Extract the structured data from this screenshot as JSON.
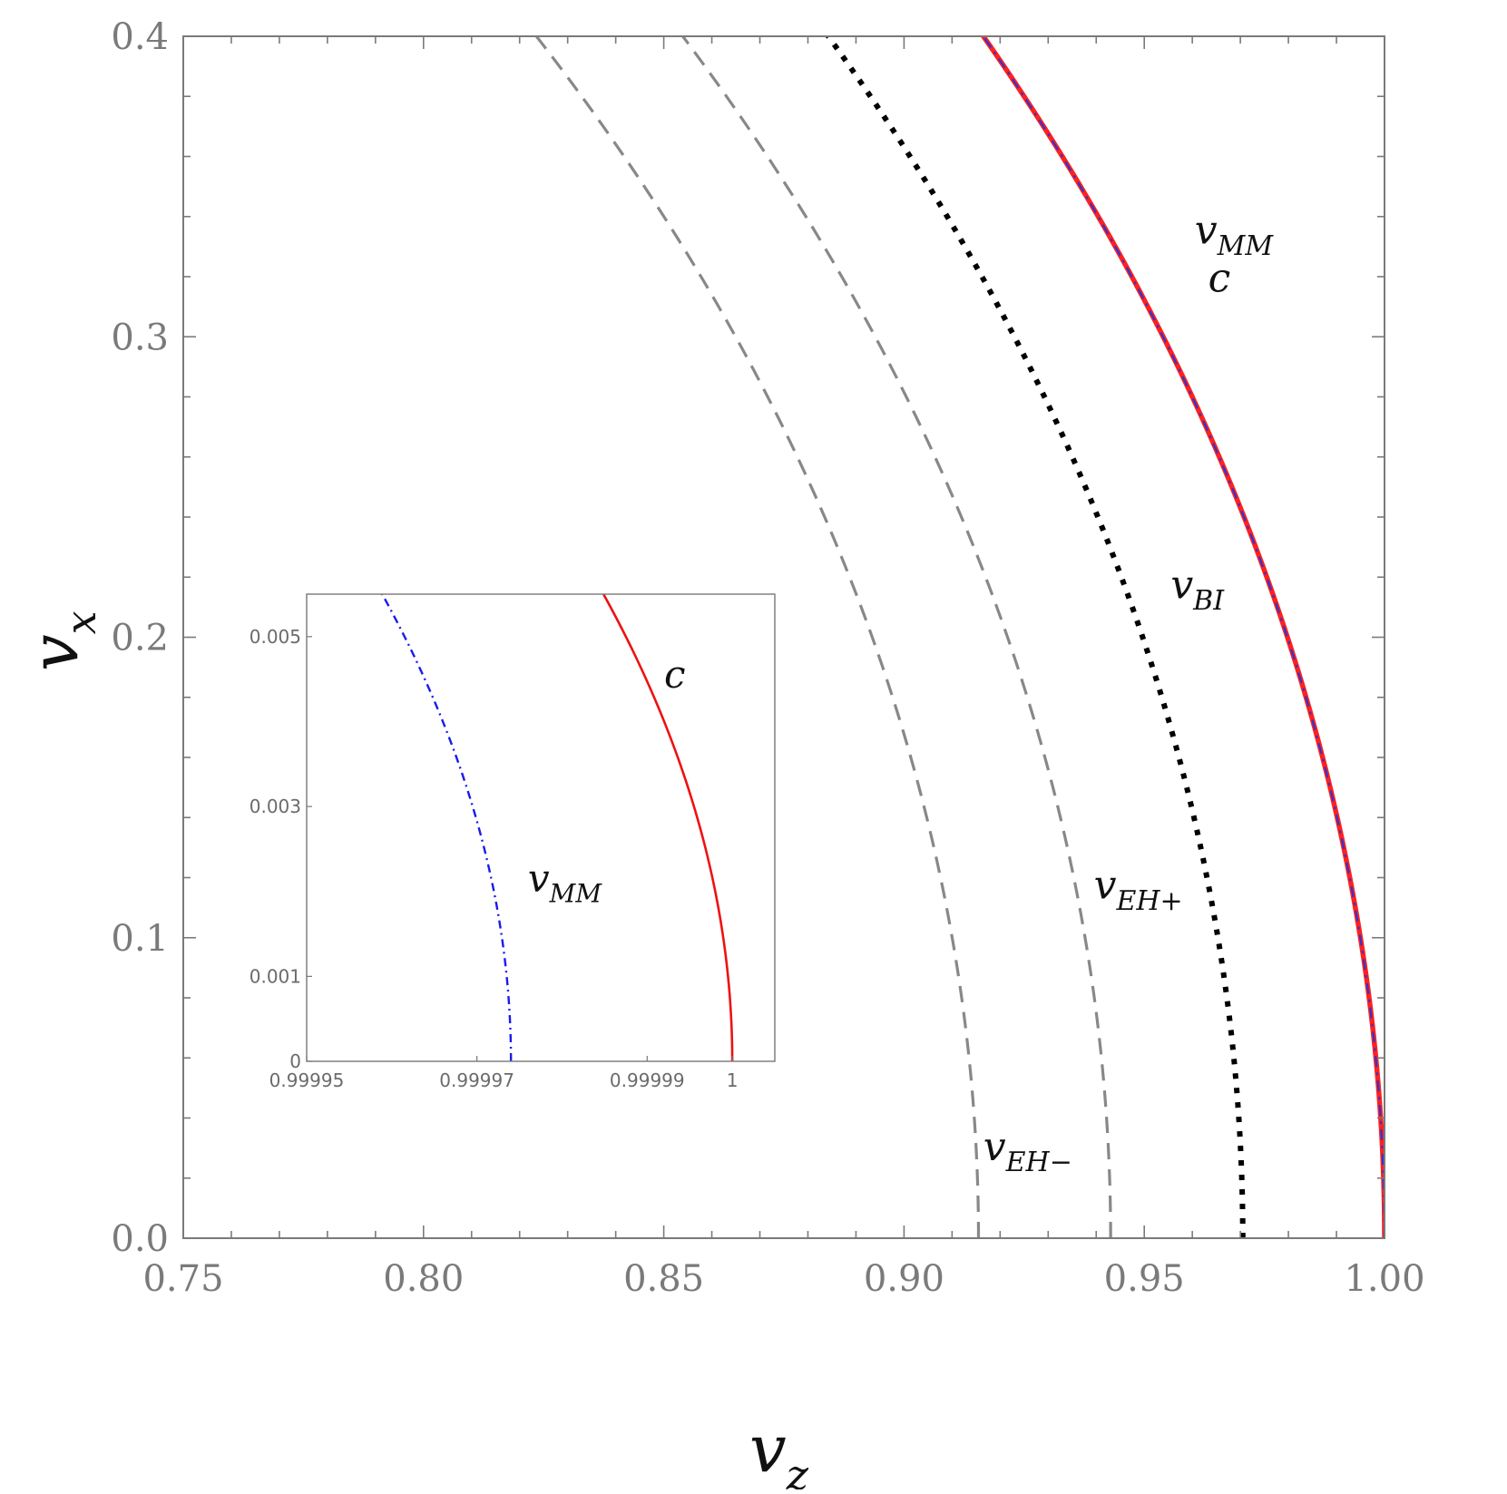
{
  "chart_data": [
    {
      "type": "line",
      "title": "",
      "xlabel": "v",
      "xlabel_sub": "z",
      "ylabel": "v",
      "ylabel_sub": "x",
      "xlim": [
        0.75,
        1.0
      ],
      "ylim": [
        0.0,
        0.4
      ],
      "xticks": [
        0.75,
        0.8,
        0.85,
        0.9,
        0.95,
        1.0
      ],
      "xtick_labels": [
        "0.75",
        "0.80",
        "0.85",
        "0.90",
        "0.95",
        "1.00"
      ],
      "yticks": [
        0.0,
        0.1,
        0.2,
        0.3,
        0.4
      ],
      "ytick_labels": [
        "0.0",
        "0.1",
        "0.2",
        "0.3",
        "0.4"
      ],
      "grid": false,
      "series": [
        {
          "name": "v_{EH-}",
          "radius": 0.9155,
          "style": "dashed",
          "color": "#888888"
        },
        {
          "name": "v_{EH+}",
          "radius": 0.943,
          "style": "dashed",
          "color": "#888888"
        },
        {
          "name": "v_{BI}",
          "radius": 0.9705,
          "style": "dotted",
          "color": "#000000"
        },
        {
          "name": "c",
          "radius": 1.0,
          "style": "solid",
          "color": "#ff2020"
        },
        {
          "name": "v_{MM}",
          "radius": 0.99997,
          "style": "dashdot",
          "color": "#3333cc"
        }
      ],
      "annotations": [
        {
          "base": "v",
          "sub": "MM",
          "x": 0.9605,
          "y": 0.331
        },
        {
          "base": "c",
          "sub": "",
          "x": 0.9633,
          "y": 0.315
        },
        {
          "base": "v",
          "sub": "BI",
          "x": 0.9555,
          "y": 0.213
        },
        {
          "base": "v",
          "sub": "EH+",
          "x": 0.9395,
          "y": 0.113
        },
        {
          "base": "v",
          "sub": "EH−",
          "x": 0.9165,
          "y": 0.026
        }
      ]
    },
    {
      "type": "line",
      "title": "",
      "inset": true,
      "xlim": [
        0.99995,
        1.000005
      ],
      "ylim": [
        0.0,
        0.0055
      ],
      "xticks": [
        0.99995,
        0.99997,
        0.99999,
        1.0
      ],
      "xtick_labels": [
        "0.99995",
        "0.99997",
        "0.99999",
        "1"
      ],
      "yticks": [
        0.0,
        0.001,
        0.003,
        0.005
      ],
      "ytick_labels": [
        "0",
        "0.001",
        "0.003",
        "0.005"
      ],
      "series": [
        {
          "name": "c",
          "radius": 1.0,
          "style": "solid",
          "color": "#ee1111"
        },
        {
          "name": "v_{MM}",
          "radius": 0.999974,
          "style": "dashdot",
          "color": "#1a1aee"
        }
      ],
      "annotations": [
        {
          "base": "c",
          "sub": "",
          "x": 0.999992,
          "y": 0.0044
        },
        {
          "base": "v",
          "sub": "MM",
          "x": 0.999976,
          "y": 0.002
        }
      ]
    }
  ]
}
